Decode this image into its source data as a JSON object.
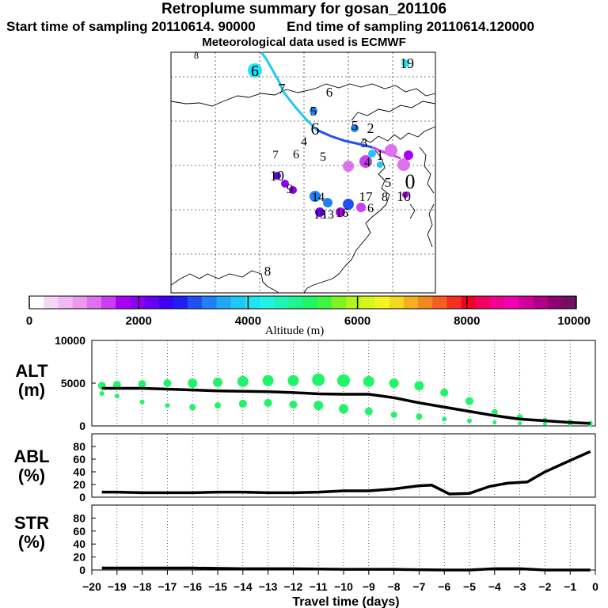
{
  "header": {
    "title": "Retroplume summary for gosan_201106",
    "start_label": "Start time of sampling 20110614. 90000",
    "end_label": "End time of sampling 20110614.120000",
    "met_label": "Meteorological data used is ECMWF"
  },
  "colorbar": {
    "ticks": [
      "0",
      "2000",
      "4000",
      "6000",
      "8000",
      "10000"
    ],
    "label": "Altitude (m)",
    "min": 0,
    "max": 10000,
    "colors": [
      "#ffffff",
      "#f7d7f7",
      "#f1b8f1",
      "#eb99eb",
      "#df70ef",
      "#c840f0",
      "#a800f0",
      "#8e00f0",
      "#6a00f2",
      "#3f00f2",
      "#1f1ff4",
      "#2050f4",
      "#2080f4",
      "#20a8f4",
      "#20c8f4",
      "#20e4f4",
      "#20f4e0",
      "#20f4b8",
      "#20f490",
      "#20f468",
      "#40f440",
      "#80f420",
      "#b0f420",
      "#d8f420",
      "#f4f420",
      "#f4d820",
      "#f4b020",
      "#f48820",
      "#f46020",
      "#f43020",
      "#f40020",
      "#f40060",
      "#f40090",
      "#f000b0",
      "#d00098",
      "#b00088",
      "#900070",
      "#701060"
    ]
  },
  "map": {
    "numbers": [
      {
        "text": "8",
        "color": "#000000"
      },
      {
        "text": "6",
        "color": "#000000"
      },
      {
        "text": "19",
        "color": "#000000"
      },
      {
        "text": "7",
        "color": "#000000"
      },
      {
        "text": "6",
        "color": "#000000"
      },
      {
        "text": "5",
        "color": "#000000"
      },
      {
        "text": "6",
        "color": "#000000"
      },
      {
        "text": "4",
        "color": "#000000"
      },
      {
        "text": "5",
        "color": "#000000"
      },
      {
        "text": "2",
        "color": "#000000"
      },
      {
        "text": "7",
        "color": "#000000"
      },
      {
        "text": "6",
        "color": "#000000"
      },
      {
        "text": "5",
        "color": "#000000"
      },
      {
        "text": "3",
        "color": "#000000"
      },
      {
        "text": "4",
        "color": "#000000"
      },
      {
        "text": "1",
        "color": "#000000"
      },
      {
        "text": "10",
        "color": "#000000"
      },
      {
        "text": "9",
        "color": "#000000"
      },
      {
        "text": "5",
        "color": "#000000"
      },
      {
        "text": "0",
        "color": "#000000"
      },
      {
        "text": "14",
        "color": "#000000"
      },
      {
        "text": "13",
        "color": "#000000"
      },
      {
        "text": "15",
        "color": "#000000"
      },
      {
        "text": "16",
        "color": "#000000"
      },
      {
        "text": "17",
        "color": "#000000"
      },
      {
        "text": "6",
        "color": "#000000"
      },
      {
        "text": "8",
        "color": "#000000"
      },
      {
        "text": "10",
        "color": "#000000"
      },
      {
        "text": "8",
        "color": "#000000"
      }
    ]
  },
  "chart_data": [
    {
      "type": "line",
      "id": "alt",
      "ylabel": "ALT (m)",
      "ylabel_top": "ALT",
      "ylabel_bottom": "(m)",
      "yticks": [
        "10000",
        "5000",
        "0"
      ],
      "ylim": [
        0,
        10000
      ],
      "x": [
        -19.6,
        -19,
        -18,
        -17,
        -16,
        -15,
        -14,
        -13,
        -12,
        -11,
        -10,
        -9,
        -8,
        -7,
        -6,
        -5,
        -4,
        -3,
        -2,
        -1,
        -0.2
      ],
      "values": [
        4400,
        4400,
        4400,
        4300,
        4200,
        4100,
        4050,
        4000,
        3900,
        3750,
        3700,
        3700,
        3300,
        2700,
        2200,
        1700,
        1200,
        800,
        600,
        400,
        300
      ],
      "scatter_upper": [
        4700,
        4800,
        4900,
        5000,
        5000,
        5100,
        5200,
        5300,
        5300,
        5400,
        5300,
        5200,
        5000,
        4700,
        3900,
        2900,
        1600,
        1000,
        700,
        500,
        300
      ],
      "scatter_lower": [
        3800,
        3500,
        2800,
        2400,
        2200,
        2400,
        2600,
        2700,
        2500,
        2400,
        2000,
        1700,
        1300,
        1100,
        800,
        600,
        400,
        300,
        250,
        200,
        100
      ],
      "scatter_sizes": [
        5,
        5,
        5,
        5,
        6,
        6,
        7,
        7,
        7,
        8,
        8,
        7,
        6,
        6,
        5,
        5,
        4,
        4,
        3,
        3,
        3
      ],
      "marker_color": "#20f468"
    },
    {
      "type": "line",
      "id": "abl",
      "ylabel": "ABL (%)",
      "ylabel_top": "ABL",
      "ylabel_bottom": "(%)",
      "yticks": [
        "80",
        "60",
        "40",
        "20",
        "0"
      ],
      "ylim": [
        0,
        100
      ],
      "x": [
        -19.6,
        -19,
        -18,
        -17,
        -16,
        -15,
        -14,
        -13,
        -12,
        -11,
        -10,
        -9,
        -8,
        -7,
        -6.5,
        -5.8,
        -5,
        -4.2,
        -3.5,
        -2.7,
        -2,
        -1,
        -0.2
      ],
      "values": [
        8,
        8,
        7,
        7,
        7,
        8,
        8,
        7,
        7,
        8,
        10,
        10,
        13,
        18,
        19,
        5,
        6,
        17,
        22,
        24,
        40,
        58,
        72
      ]
    },
    {
      "type": "line",
      "id": "str",
      "ylabel": "STR (%)",
      "ylabel_top": "STR",
      "ylabel_bottom": "(%)",
      "yticks": [
        "80",
        "60",
        "40",
        "20",
        "0"
      ],
      "ylim": [
        0,
        100
      ],
      "x": [
        -19.6,
        -18,
        -16,
        -14,
        -12,
        -10,
        -8,
        -6,
        -5,
        -4,
        -3,
        -2,
        -1,
        -0.2
      ],
      "values": [
        3,
        3,
        3,
        2,
        2,
        1,
        1,
        0,
        0,
        2,
        2,
        0,
        0,
        0
      ]
    },
    {
      "type": "axis",
      "xlabel": "Travel time (days)",
      "xlim": [
        -20,
        0
      ],
      "xticks": [
        "−20",
        "−19",
        "−18",
        "−17",
        "−16",
        "−15",
        "−14",
        "−13",
        "−12",
        "−11",
        "−10",
        "−9",
        "−8",
        "−7",
        "−6",
        "−5",
        "−4",
        "−3",
        "−2",
        "−1",
        "0"
      ]
    }
  ]
}
